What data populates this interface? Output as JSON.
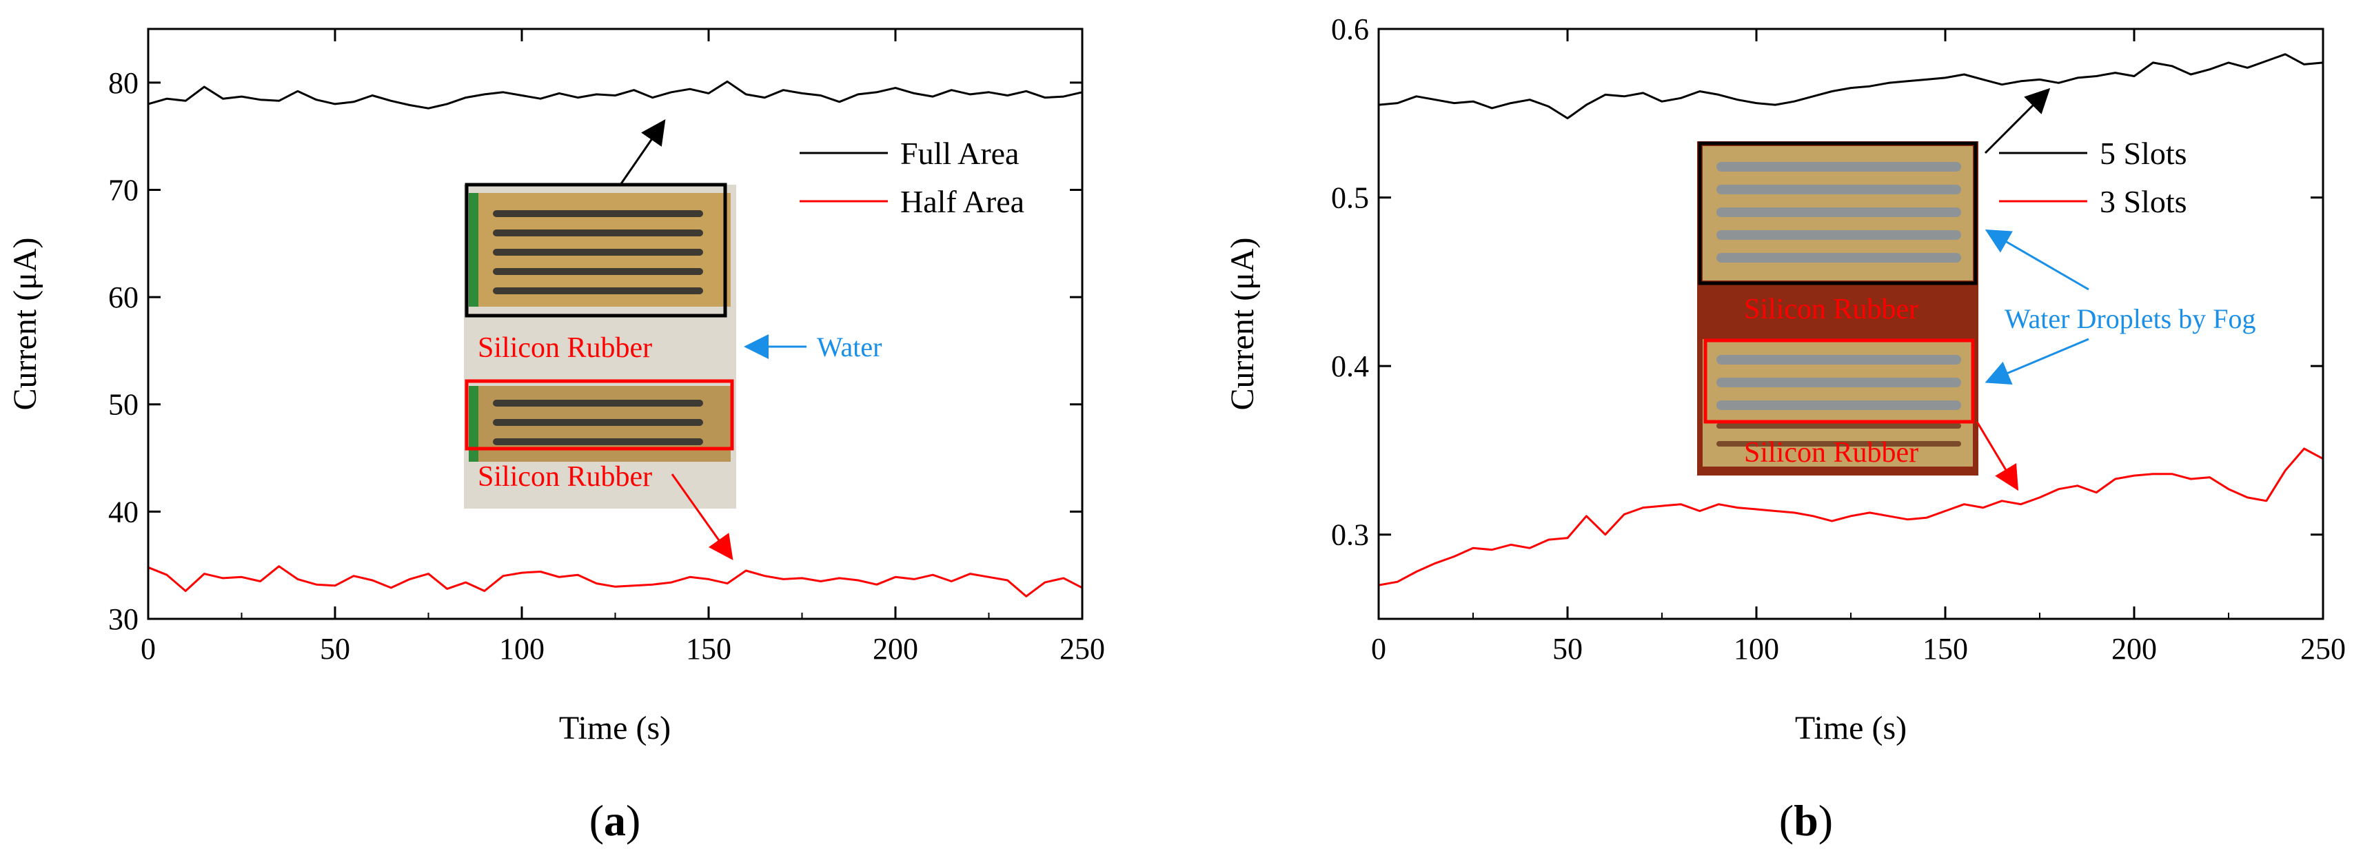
{
  "chart_data": [
    {
      "type": "line",
      "panel_label": "(a)",
      "panel_letter": "a",
      "xlabel": "Time (s)",
      "ylabel": "Current (μA)",
      "xlim": [
        0,
        250
      ],
      "ylim": [
        30,
        85
      ],
      "xticks": [
        "0",
        "50",
        "100",
        "150",
        "200",
        "250"
      ],
      "yticks": [
        "30",
        "40",
        "50",
        "60",
        "70",
        "80"
      ],
      "ytick_values": [
        30,
        40,
        50,
        60,
        70,
        80
      ],
      "xtick_values": [
        0,
        50,
        100,
        150,
        200,
        250
      ],
      "series": [
        {
          "name": "Full Area",
          "color": "#000000",
          "x": [
            0,
            5,
            10,
            15,
            20,
            25,
            30,
            35,
            40,
            45,
            50,
            55,
            60,
            65,
            70,
            75,
            80,
            85,
            90,
            95,
            100,
            105,
            110,
            115,
            120,
            125,
            130,
            135,
            140,
            145,
            150,
            155,
            160,
            165,
            170,
            175,
            180,
            185,
            190,
            195,
            200,
            205,
            210,
            215,
            220,
            225,
            230,
            235,
            240,
            245,
            250
          ],
          "values": [
            78.0,
            78.5,
            78.3,
            79.6,
            78.5,
            78.7,
            78.4,
            78.3,
            79.2,
            78.4,
            78.0,
            78.2,
            78.8,
            78.3,
            77.9,
            77.6,
            78.0,
            78.6,
            78.9,
            79.1,
            78.8,
            78.5,
            79.0,
            78.6,
            78.9,
            78.8,
            79.3,
            78.6,
            79.1,
            79.4,
            79.0,
            80.1,
            78.9,
            78.6,
            79.3,
            79.0,
            78.8,
            78.2,
            78.9,
            79.1,
            79.5,
            79.0,
            78.7,
            79.3,
            78.9,
            79.1,
            78.8,
            79.2,
            78.6,
            78.7,
            79.1
          ]
        },
        {
          "name": "Half Area",
          "color": "#ff0000",
          "x": [
            0,
            5,
            10,
            15,
            20,
            25,
            30,
            35,
            40,
            45,
            50,
            55,
            60,
            65,
            70,
            75,
            80,
            85,
            90,
            95,
            100,
            105,
            110,
            115,
            120,
            125,
            130,
            135,
            140,
            145,
            150,
            155,
            160,
            165,
            170,
            175,
            180,
            185,
            190,
            195,
            200,
            205,
            210,
            215,
            220,
            225,
            230,
            235,
            240,
            245,
            250
          ],
          "values": [
            34.8,
            34.1,
            32.6,
            34.2,
            33.8,
            33.9,
            33.5,
            34.9,
            33.7,
            33.2,
            33.1,
            34.0,
            33.6,
            32.9,
            33.7,
            34.2,
            32.8,
            33.4,
            32.6,
            34.0,
            34.3,
            34.4,
            33.9,
            34.1,
            33.3,
            33.0,
            33.1,
            33.2,
            33.4,
            33.9,
            33.7,
            33.3,
            34.5,
            34.0,
            33.7,
            33.8,
            33.5,
            33.8,
            33.6,
            33.2,
            33.9,
            33.7,
            34.1,
            33.5,
            34.2,
            33.9,
            33.6,
            32.1,
            33.4,
            33.8,
            32.9
          ]
        }
      ],
      "legend": [
        "Full Area",
        "Half Area"
      ],
      "annotations": {
        "silicon_rubber_top": "Silicon Rubber",
        "silicon_rubber_bottom": "Silicon Rubber",
        "water": "Water"
      }
    },
    {
      "type": "line",
      "panel_label": "(b)",
      "panel_letter": "b",
      "xlabel": "Time (s)",
      "ylabel": "Current (μA)",
      "xlim": [
        0,
        250
      ],
      "ylim": [
        0.25,
        0.6
      ],
      "xticks": [
        "0",
        "50",
        "100",
        "150",
        "200",
        "250"
      ],
      "yticks": [
        "0.3",
        "0.4",
        "0.5",
        "0.6"
      ],
      "ytick_values": [
        0.3,
        0.4,
        0.5,
        0.6
      ],
      "xtick_values": [
        0,
        50,
        100,
        150,
        200,
        250
      ],
      "series": [
        {
          "name": "5 Slots",
          "color": "#000000",
          "x": [
            0,
            5,
            10,
            15,
            20,
            25,
            30,
            35,
            40,
            45,
            50,
            55,
            60,
            65,
            70,
            75,
            80,
            85,
            90,
            95,
            100,
            105,
            110,
            115,
            120,
            125,
            130,
            135,
            140,
            145,
            150,
            155,
            160,
            165,
            170,
            175,
            180,
            185,
            190,
            195,
            200,
            205,
            210,
            215,
            220,
            225,
            230,
            235,
            240,
            245,
            250
          ],
          "values": [
            0.555,
            0.556,
            0.56,
            0.558,
            0.556,
            0.557,
            0.553,
            0.556,
            0.558,
            0.554,
            0.547,
            0.555,
            0.561,
            0.56,
            0.562,
            0.557,
            0.559,
            0.563,
            0.561,
            0.558,
            0.556,
            0.555,
            0.557,
            0.56,
            0.563,
            0.565,
            0.566,
            0.568,
            0.569,
            0.57,
            0.571,
            0.573,
            0.57,
            0.567,
            0.569,
            0.57,
            0.568,
            0.571,
            0.572,
            0.574,
            0.572,
            0.58,
            0.578,
            0.573,
            0.576,
            0.58,
            0.577,
            0.581,
            0.585,
            0.579,
            0.58
          ]
        },
        {
          "name": "3 Slots",
          "color": "#ff0000",
          "x": [
            0,
            5,
            10,
            15,
            20,
            25,
            30,
            35,
            40,
            45,
            50,
            55,
            60,
            65,
            70,
            75,
            80,
            85,
            90,
            95,
            100,
            105,
            110,
            115,
            120,
            125,
            130,
            135,
            140,
            145,
            150,
            155,
            160,
            165,
            170,
            175,
            180,
            185,
            190,
            195,
            200,
            205,
            210,
            215,
            220,
            225,
            230,
            235,
            240,
            245,
            250
          ],
          "values": [
            0.27,
            0.272,
            0.278,
            0.283,
            0.287,
            0.292,
            0.291,
            0.294,
            0.292,
            0.297,
            0.298,
            0.311,
            0.3,
            0.312,
            0.316,
            0.317,
            0.318,
            0.314,
            0.318,
            0.316,
            0.315,
            0.314,
            0.313,
            0.311,
            0.308,
            0.311,
            0.313,
            0.311,
            0.309,
            0.31,
            0.314,
            0.318,
            0.316,
            0.32,
            0.318,
            0.322,
            0.327,
            0.329,
            0.325,
            0.333,
            0.335,
            0.336,
            0.336,
            0.333,
            0.334,
            0.327,
            0.322,
            0.32,
            0.338,
            0.351,
            0.345
          ]
        }
      ],
      "legend": [
        "5 Slots",
        "3 Slots"
      ],
      "annotations": {
        "silicon_rubber_top": "Silicon Rubber",
        "silicon_rubber_bottom": "Silicon Rubber",
        "water_droplets": "Water Droplets by Fog"
      }
    }
  ],
  "colors": {
    "board_gold": "#c8a25a",
    "board_green": "#2f8a3a",
    "slot_dark": "#3d3a34",
    "rubber_red": "#8c2a14",
    "annot_blue": "#1a8fe8",
    "annot_red": "#ff0000"
  }
}
